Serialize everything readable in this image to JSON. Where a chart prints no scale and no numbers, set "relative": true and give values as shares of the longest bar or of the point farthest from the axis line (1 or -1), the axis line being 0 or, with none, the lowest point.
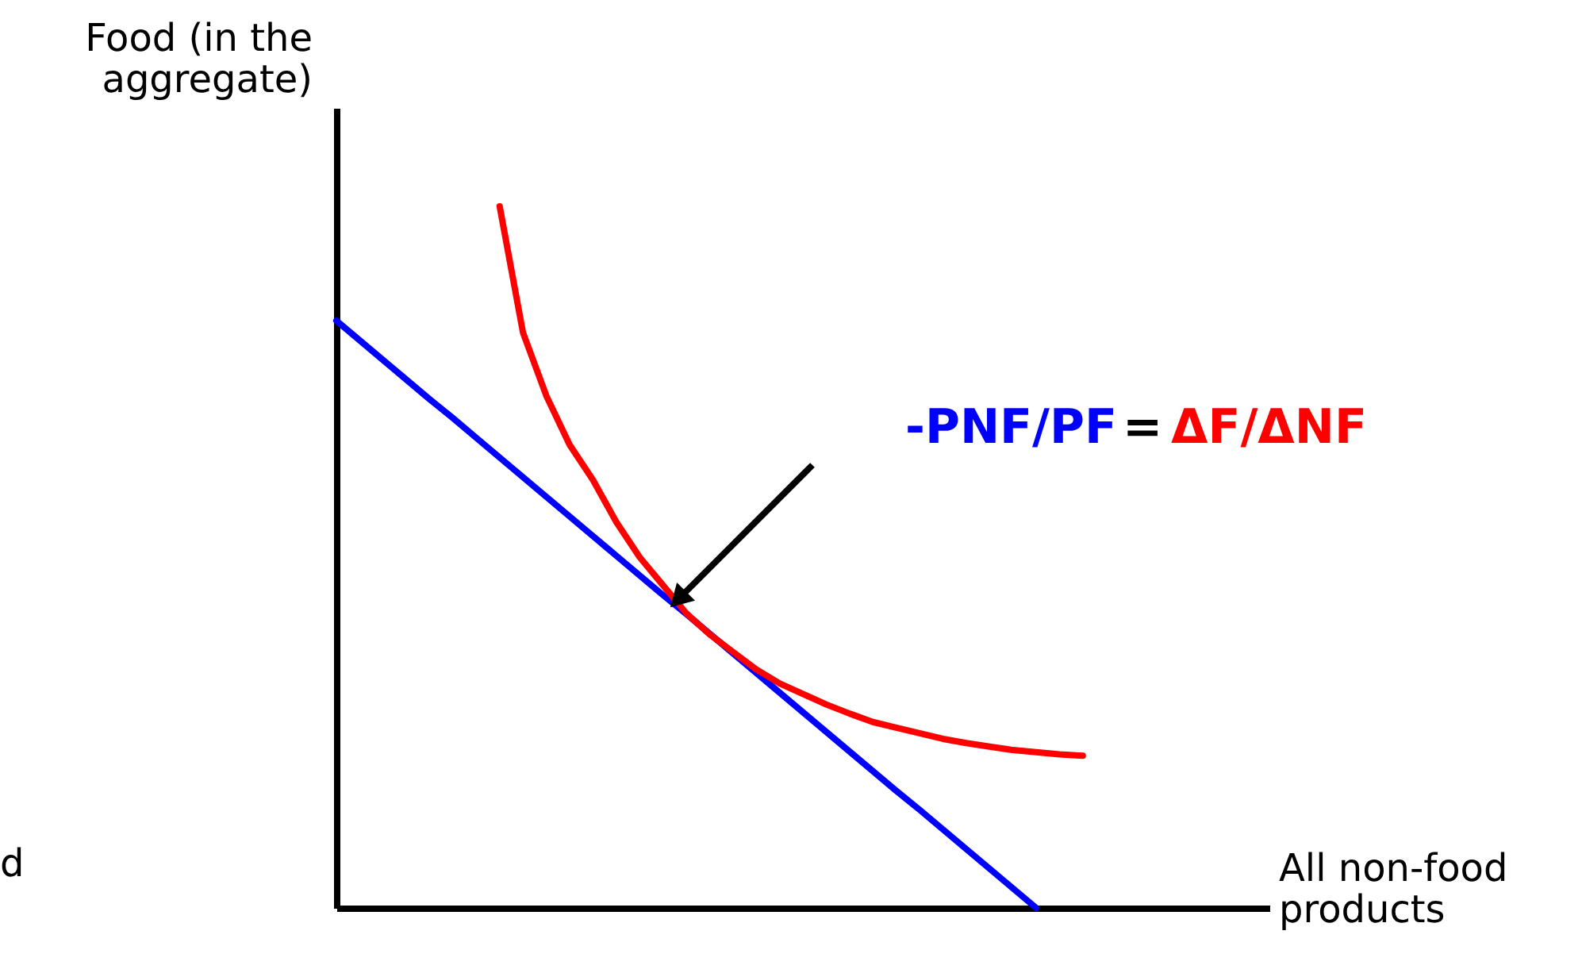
{
  "chart_data": {
    "type": "line",
    "relative": true,
    "xlabel": "All non-food products",
    "ylabel": "Food (in the aggregate)",
    "categories": [
      null,
      null,
      null,
      null,
      null,
      null,
      null,
      null,
      null,
      null,
      null,
      null,
      null,
      null,
      null,
      null,
      null,
      null,
      null,
      null,
      null,
      null,
      null,
      null,
      null,
      null,
      null,
      null,
      null,
      null,
      null,
      null,
      null,
      null,
      null,
      null,
      null,
      null,
      null,
      null,
      null
    ],
    "series": [
      {
        "color": "#0000ff",
        "values": [
          0.837,
          0.809,
          0.781,
          0.753,
          0.725,
          0.698,
          0.67,
          0.642,
          0.614,
          0.586,
          0.558,
          0.53,
          0.502,
          0.474,
          0.446,
          0.419,
          0.391,
          0.363,
          0.335,
          0.307,
          0.279,
          0.251,
          0.223,
          0.195,
          0.167,
          0.14,
          0.112,
          0.084,
          0.056,
          0.028,
          0,
          null,
          null,
          null,
          null,
          null,
          null,
          null,
          null,
          null,
          null
        ]
      },
      {
        "color": "#ff0000",
        "values": [
          null,
          null,
          null,
          null,
          null,
          null,
          null,
          1.0,
          0.82,
          0.73,
          0.66,
          0.61,
          0.55,
          0.5,
          0.46,
          0.42,
          0.39,
          0.365,
          0.34,
          0.32,
          0.305,
          0.29,
          0.277,
          0.265,
          0.257,
          0.249,
          0.241,
          0.235,
          0.23,
          0.225,
          0.222,
          0.219,
          0.217,
          null,
          null,
          null,
          null,
          null,
          null,
          null,
          null
        ]
      }
    ],
    "annotations": [
      "-PNF/PF",
      "=",
      "ΔF/ΔNF",
      "d"
    ],
    "grid": false,
    "marker": "none",
    "line_style": "solid"
  }
}
